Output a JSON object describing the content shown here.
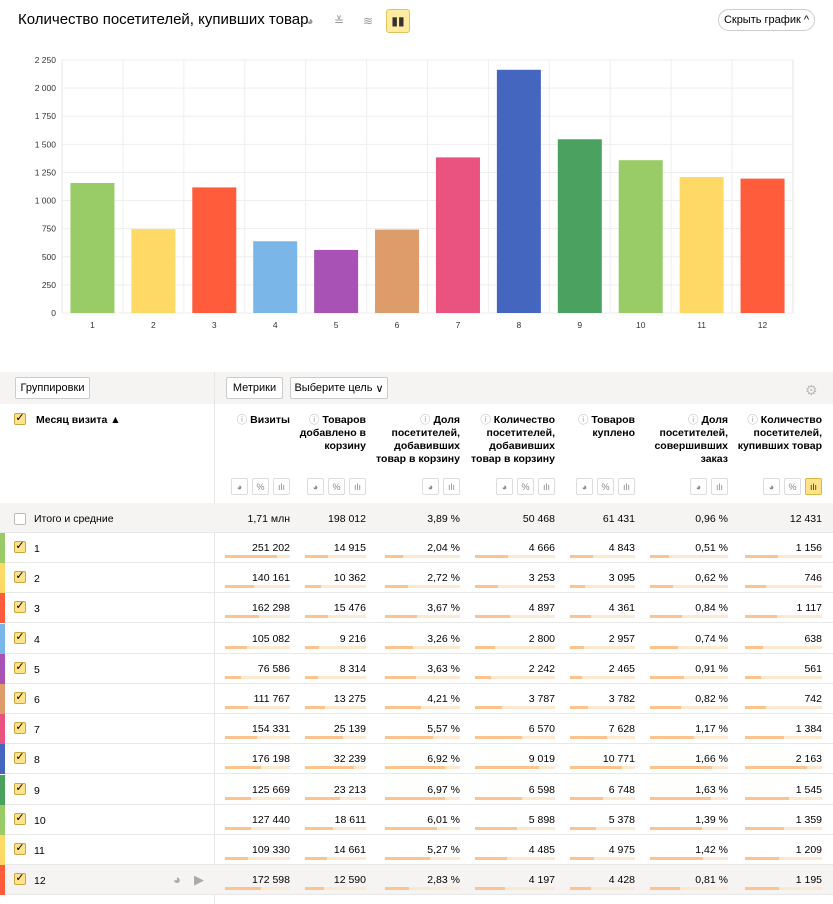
{
  "header": {
    "title": "Количество посетителей, купивших товар",
    "hide_chart": "Скрыть график",
    "chart_types": [
      "pie-chart-icon",
      "line-chart-icon",
      "area-chart-icon",
      "bar-chart-icon"
    ],
    "active_chart_type": "bar-chart-icon"
  },
  "chart_data": {
    "type": "bar",
    "categories": [
      "1",
      "2",
      "3",
      "4",
      "5",
      "6",
      "7",
      "8",
      "9",
      "10",
      "11",
      "12"
    ],
    "values": [
      1156,
      746,
      1117,
      638,
      561,
      742,
      1384,
      2163,
      1545,
      1359,
      1209,
      1195
    ],
    "colors": [
      "#99cc66",
      "#ffd966",
      "#ff5c3c",
      "#7ab6e8",
      "#a852b6",
      "#de9c6a",
      "#ea5280",
      "#4566bf",
      "#4ba160",
      "#99cc66",
      "#ffd966",
      "#ff5c3c"
    ],
    "yticks": [
      "0",
      "250",
      "500",
      "750",
      "1 000",
      "1 250",
      "1 500",
      "1 750",
      "2 000",
      "2 250"
    ],
    "ylim": [
      0,
      2250
    ],
    "grid": true
  },
  "toolbar": {
    "groupings": "Группировки",
    "metrics": "Метрики",
    "goal": "Выберите цель"
  },
  "table": {
    "dimension": "Месяц визита ▲",
    "columns": [
      "Визиты",
      "Товаров добавлено в корзину",
      "Доля посетителей, добавивших товар в корзину",
      "Количество посетителей, добавивших товар в корзину",
      "Товаров куплено",
      "Доля посетителей, совершивших заказ",
      "Количество посетителей, купивших товар"
    ],
    "totals_label": "Итого и средние",
    "totals": [
      "1,71 млн",
      "198 012",
      "3,89 %",
      "50 468",
      "61 431",
      "0,96 %",
      "12 431"
    ],
    "rows": [
      {
        "label": "1",
        "values": [
          "251 202",
          "14 915",
          "2,04 %",
          "4 666",
          "4 843",
          "0,51 %",
          "1 156"
        ]
      },
      {
        "label": "2",
        "values": [
          "140 161",
          "10 362",
          "2,72 %",
          "3 253",
          "3 095",
          "0,62 %",
          "746"
        ]
      },
      {
        "label": "3",
        "values": [
          "162 298",
          "15 476",
          "3,67 %",
          "4 897",
          "4 361",
          "0,84 %",
          "1 117"
        ]
      },
      {
        "label": "4",
        "values": [
          "105 082",
          "9 216",
          "3,26 %",
          "2 800",
          "2 957",
          "0,74 %",
          "638"
        ]
      },
      {
        "label": "5",
        "values": [
          "76 586",
          "8 314",
          "3,63 %",
          "2 242",
          "2 465",
          "0,91 %",
          "561"
        ]
      },
      {
        "label": "6",
        "values": [
          "111 767",
          "13 275",
          "4,21 %",
          "3 787",
          "3 782",
          "0,82 %",
          "742"
        ]
      },
      {
        "label": "7",
        "values": [
          "154 331",
          "25 139",
          "5,57 %",
          "6 570",
          "7 628",
          "1,17 %",
          "1 384"
        ]
      },
      {
        "label": "8",
        "values": [
          "176 198",
          "32 239",
          "6,92 %",
          "9 019",
          "10 771",
          "1,66 %",
          "2 163"
        ]
      },
      {
        "label": "9",
        "values": [
          "125 669",
          "23 213",
          "6,97 %",
          "6 598",
          "6 748",
          "1,63 %",
          "1 545"
        ]
      },
      {
        "label": "10",
        "values": [
          "127 440",
          "18 611",
          "6,01 %",
          "5 898",
          "5 378",
          "1,39 %",
          "1 359"
        ]
      },
      {
        "label": "11",
        "values": [
          "109 330",
          "14 661",
          "5,27 %",
          "4 485",
          "4 975",
          "1,42 %",
          "1 209"
        ]
      },
      {
        "label": "12",
        "values": [
          "172 598",
          "12 590",
          "2,83 %",
          "4 197",
          "4 428",
          "0,81 %",
          "1 195"
        ]
      }
    ]
  }
}
